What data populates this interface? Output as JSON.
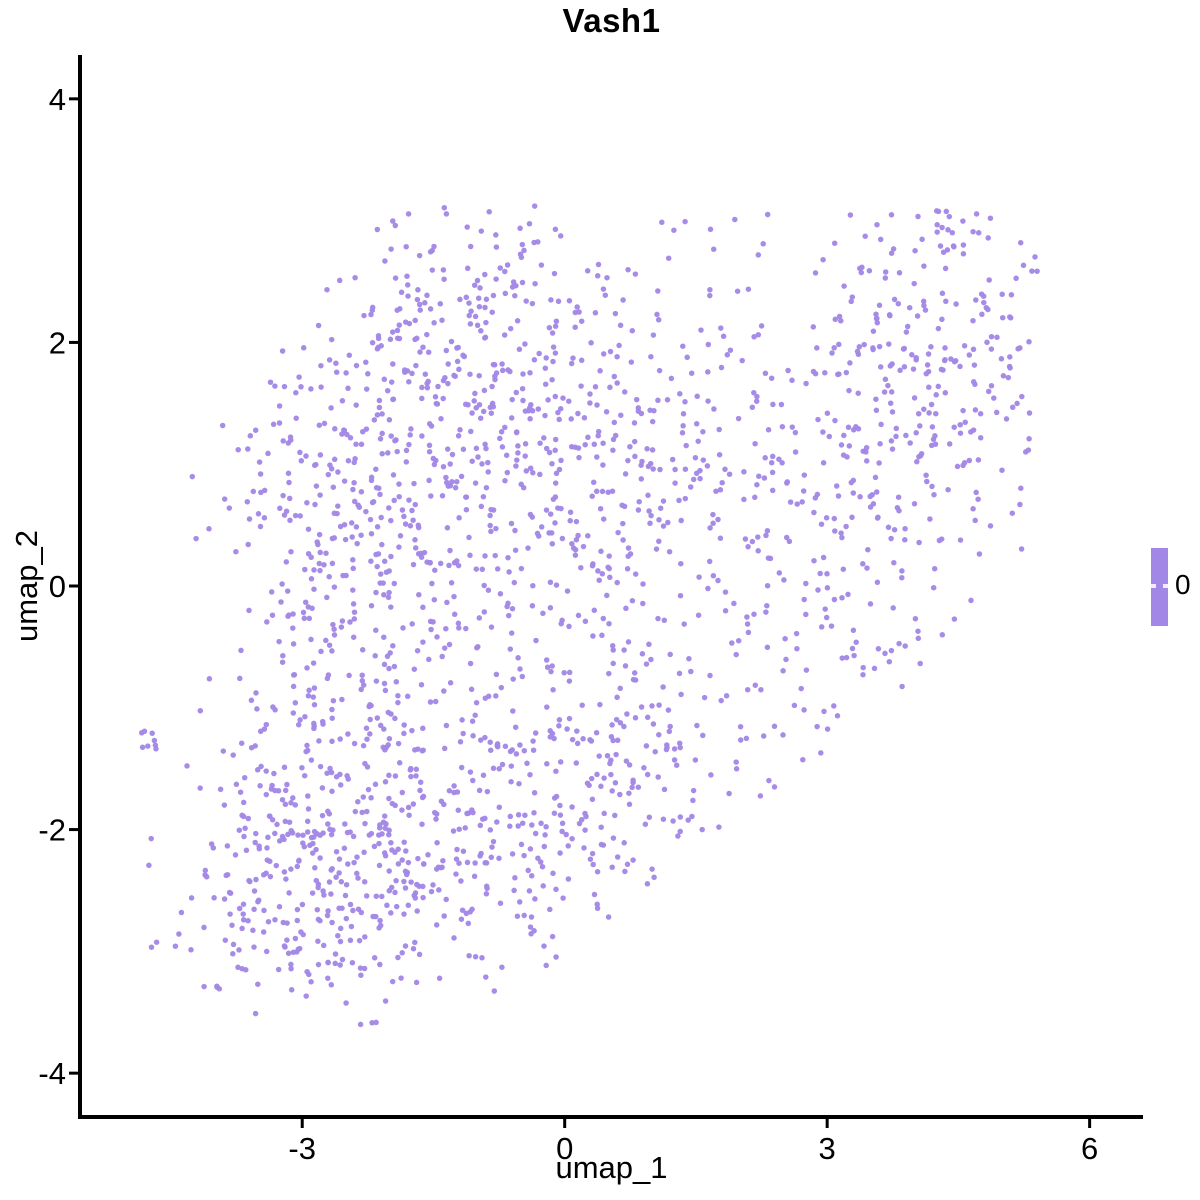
{
  "chart_data": {
    "type": "scatter",
    "title": "Vash1",
    "xlabel": "umap_1",
    "ylabel": "umap_2",
    "xlim": [
      -5.54,
      6.61
    ],
    "ylim": [
      -4.36,
      4.36
    ],
    "x_ticks": [
      -3,
      0,
      3,
      6
    ],
    "y_ticks": [
      -4,
      -2,
      0,
      2,
      4
    ],
    "grid": "off",
    "axis_color": "#000000",
    "point_color": "#a287e6",
    "point_radius": 2.75,
    "legend": {
      "position": "right",
      "label": "0",
      "bar_color": "#a287e6"
    },
    "point_cloud": {
      "seed": 42,
      "clusters": [
        {
          "n": 430,
          "cx": -2.7,
          "cy": -2.25,
          "sx": 0.95,
          "sy": 0.62
        },
        {
          "n": 300,
          "cx": -2.55,
          "cy": 0.2,
          "sx": 0.75,
          "sy": 1.05
        },
        {
          "n": 300,
          "cx": -1.1,
          "cy": 1.85,
          "sx": 1.05,
          "sy": 0.7
        },
        {
          "n": 280,
          "cx": -0.25,
          "cy": 0.45,
          "sx": 1.05,
          "sy": 1.05
        },
        {
          "n": 230,
          "cx": -0.15,
          "cy": -1.75,
          "sx": 0.95,
          "sy": 0.75
        },
        {
          "n": 250,
          "cx": 4.3,
          "cy": 1.95,
          "sx": 0.8,
          "sy": 0.75
        },
        {
          "n": 150,
          "cx": 3.1,
          "cy": -0.1,
          "sx": 0.8,
          "sy": 0.95
        },
        {
          "n": 130,
          "cx": 1.4,
          "cy": 1.1,
          "sx": 0.95,
          "sy": 0.95
        },
        {
          "n": 70,
          "cx": 1.0,
          "cy": -1.1,
          "sx": 0.9,
          "sy": 0.8
        },
        {
          "n": 8,
          "cx": -4.72,
          "cy": -1.2,
          "sx": 0.07,
          "sy": 0.12
        }
      ],
      "bounds": {
        "xmin": -4.85,
        "xmax": 5.4,
        "ymin": -3.6,
        "ymax": 3.15,
        "cuts": [
          {
            "side": "below",
            "m": 0.55,
            "b": -3.0
          },
          {
            "side": "above",
            "m": 0.9,
            "b": 4.9
          },
          {
            "side": "above",
            "m": -0.9,
            "b": 7.6
          }
        ]
      }
    }
  }
}
